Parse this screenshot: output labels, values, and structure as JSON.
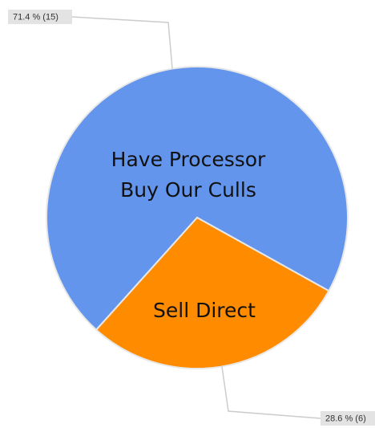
{
  "chart_data": {
    "type": "pie",
    "categories": [
      "Have Processor Buy Our Culls",
      "Sell Direct"
    ],
    "values": [
      71.4,
      28.6
    ],
    "value_labels": [
      "71.4 % (15)",
      "28.6 % (6)"
    ],
    "colors": [
      "#6495ed",
      "#ff8c00"
    ]
  }
}
